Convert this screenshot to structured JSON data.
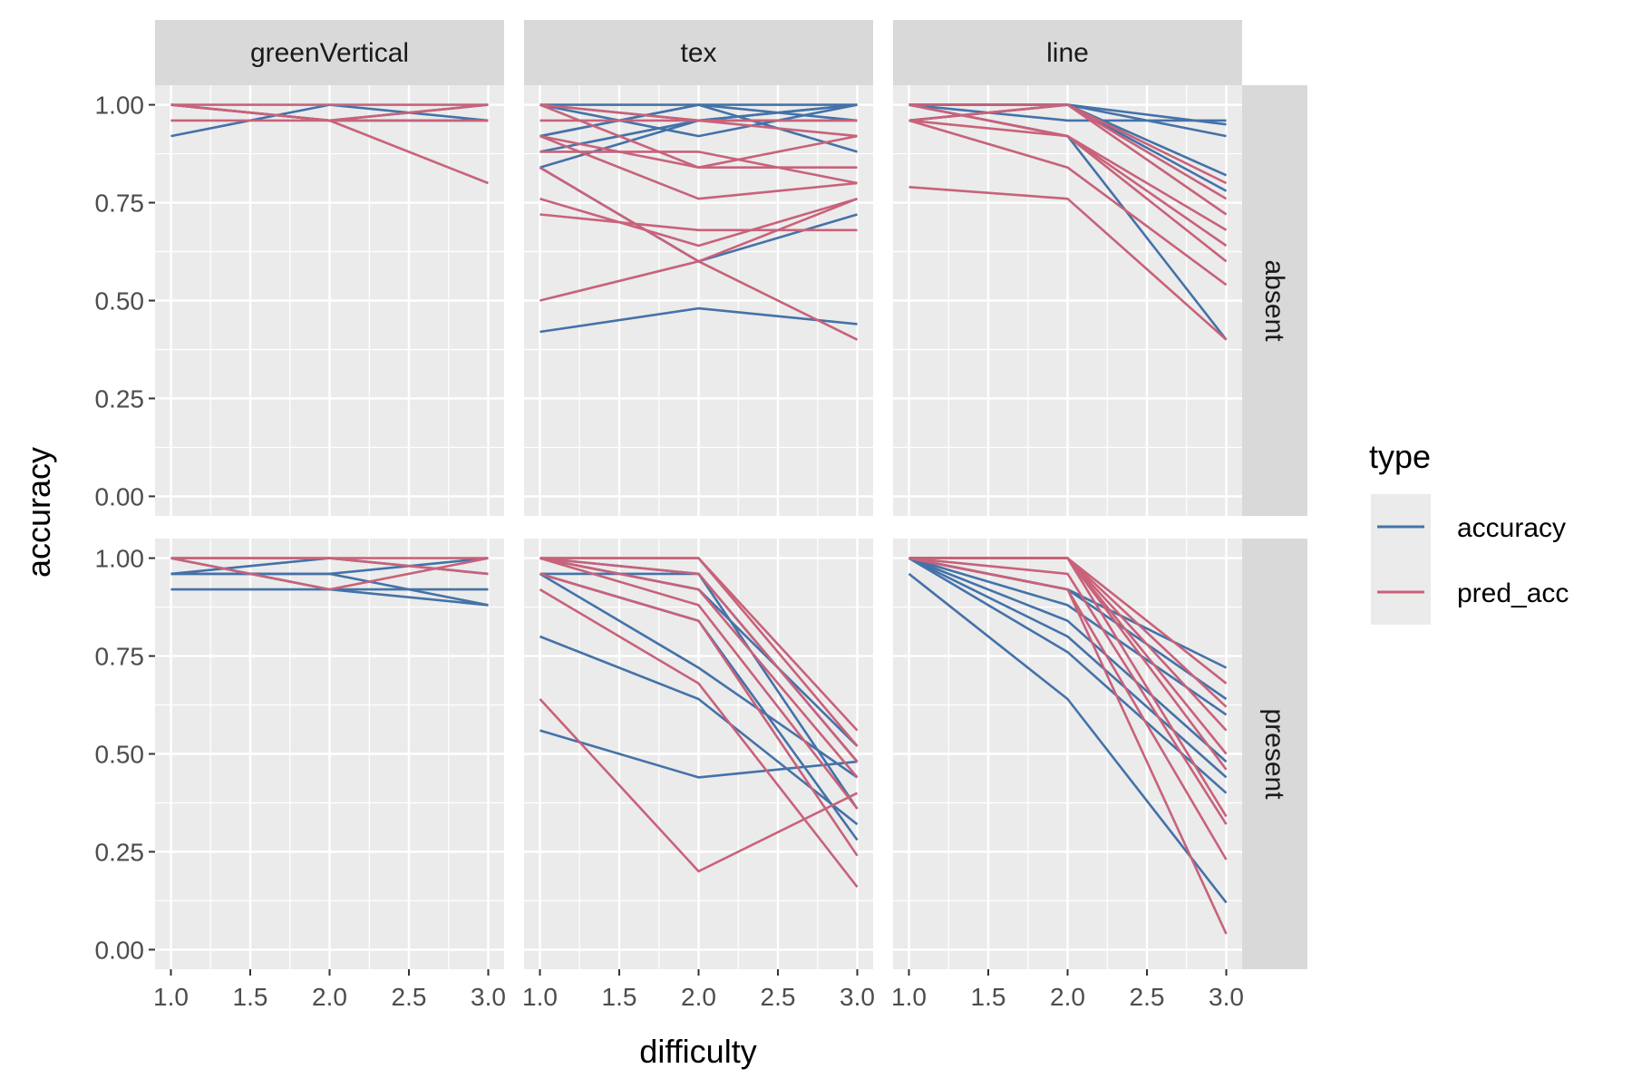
{
  "chart_data": {
    "type": "line",
    "xlabel": "difficulty",
    "ylabel": "accuracy",
    "xlim": [
      0.9,
      3.1
    ],
    "ylim": [
      -0.05,
      1.05
    ],
    "x_ticks": [
      "1.0",
      "1.5",
      "2.0",
      "2.5",
      "3.0"
    ],
    "y_ticks": [
      "0.00",
      "0.25",
      "0.50",
      "0.75",
      "1.00"
    ],
    "grid": true,
    "column_facets": [
      "greenVertical",
      "tex",
      "line"
    ],
    "row_facets": [
      "absent",
      "present"
    ],
    "legend": {
      "title": "type",
      "placement": "right",
      "entries": [
        {
          "name": "accuracy",
          "color": "#4472A8"
        },
        {
          "name": "pred_acc",
          "color": "#C8627A"
        }
      ]
    },
    "x": [
      1,
      2,
      3
    ],
    "panels": [
      {
        "column": "greenVertical",
        "row": "absent",
        "series": [
          {
            "type": "accuracy",
            "y": [
              0.92,
              1.0,
              0.96
            ]
          },
          {
            "type": "accuracy",
            "y": [
              1.0,
              0.96,
              1.0
            ]
          },
          {
            "type": "accuracy",
            "y": [
              1.0,
              0.96,
              0.96
            ]
          },
          {
            "type": "pred_acc",
            "y": [
              1.0,
              0.96,
              0.8
            ]
          },
          {
            "type": "pred_acc",
            "y": [
              0.96,
              0.96,
              0.96
            ]
          },
          {
            "type": "pred_acc",
            "y": [
              1.0,
              1.0,
              1.0
            ]
          },
          {
            "type": "pred_acc",
            "y": [
              1.0,
              0.96,
              1.0
            ]
          }
        ]
      },
      {
        "column": "greenVertical",
        "row": "present",
        "series": [
          {
            "type": "accuracy",
            "y": [
              0.96,
              0.96,
              0.88
            ]
          },
          {
            "type": "accuracy",
            "y": [
              0.92,
              0.92,
              0.92
            ]
          },
          {
            "type": "accuracy",
            "y": [
              0.96,
              1.0,
              0.96
            ]
          },
          {
            "type": "accuracy",
            "y": [
              1.0,
              0.92,
              0.88
            ]
          },
          {
            "type": "accuracy",
            "y": [
              0.96,
              0.96,
              1.0
            ]
          },
          {
            "type": "pred_acc",
            "y": [
              1.0,
              1.0,
              1.0
            ]
          },
          {
            "type": "pred_acc",
            "y": [
              1.0,
              0.92,
              1.0
            ]
          },
          {
            "type": "pred_acc",
            "y": [
              1.0,
              1.0,
              0.96
            ]
          }
        ]
      },
      {
        "column": "tex",
        "row": "absent",
        "series": [
          {
            "type": "accuracy",
            "y": [
              0.42,
              0.48,
              0.44
            ]
          },
          {
            "type": "accuracy",
            "y": [
              0.84,
              0.6,
              0.72
            ]
          },
          {
            "type": "accuracy",
            "y": [
              1.0,
              0.92,
              1.0
            ]
          },
          {
            "type": "accuracy",
            "y": [
              0.92,
              1.0,
              0.88
            ]
          },
          {
            "type": "accuracy",
            "y": [
              0.84,
              0.96,
              1.0
            ]
          },
          {
            "type": "accuracy",
            "y": [
              1.0,
              0.96,
              0.96
            ]
          },
          {
            "type": "accuracy",
            "y": [
              0.88,
              0.96,
              1.0
            ]
          },
          {
            "type": "accuracy",
            "y": [
              0.92,
              1.0,
              1.0
            ]
          },
          {
            "type": "accuracy",
            "y": [
              1.0,
              1.0,
              0.96
            ]
          },
          {
            "type": "pred_acc",
            "y": [
              0.5,
              0.6,
              0.76
            ]
          },
          {
            "type": "pred_acc",
            "y": [
              0.72,
              0.68,
              0.68
            ]
          },
          {
            "type": "pred_acc",
            "y": [
              0.76,
              0.64,
              0.76
            ]
          },
          {
            "type": "pred_acc",
            "y": [
              0.84,
              0.6,
              0.4
            ]
          },
          {
            "type": "pred_acc",
            "y": [
              0.92,
              0.76,
              0.8
            ]
          },
          {
            "type": "pred_acc",
            "y": [
              0.88,
              0.88,
              0.8
            ]
          },
          {
            "type": "pred_acc",
            "y": [
              0.92,
              0.84,
              0.84
            ]
          },
          {
            "type": "pred_acc",
            "y": [
              1.0,
              0.84,
              0.92
            ]
          },
          {
            "type": "pred_acc",
            "y": [
              0.96,
              0.96,
              0.92
            ]
          },
          {
            "type": "pred_acc",
            "y": [
              1.0,
              0.96,
              0.96
            ]
          }
        ]
      },
      {
        "column": "tex",
        "row": "present",
        "series": [
          {
            "type": "accuracy",
            "y": [
              0.56,
              0.44,
              0.48
            ]
          },
          {
            "type": "accuracy",
            "y": [
              0.8,
              0.64,
              0.32
            ]
          },
          {
            "type": "accuracy",
            "y": [
              0.96,
              0.72,
              0.44
            ]
          },
          {
            "type": "accuracy",
            "y": [
              0.96,
              0.84,
              0.28
            ]
          },
          {
            "type": "accuracy",
            "y": [
              1.0,
              0.92,
              0.52
            ]
          },
          {
            "type": "accuracy",
            "y": [
              0.96,
              0.96,
              0.48
            ]
          },
          {
            "type": "accuracy",
            "y": [
              1.0,
              0.96,
              0.36
            ]
          },
          {
            "type": "pred_acc",
            "y": [
              0.64,
              0.2,
              0.4
            ]
          },
          {
            "type": "pred_acc",
            "y": [
              0.92,
              0.68,
              0.16
            ]
          },
          {
            "type": "pred_acc",
            "y": [
              0.96,
              0.84,
              0.24
            ]
          },
          {
            "type": "pred_acc",
            "y": [
              1.0,
              0.88,
              0.36
            ]
          },
          {
            "type": "pred_acc",
            "y": [
              1.0,
              0.92,
              0.44
            ]
          },
          {
            "type": "pred_acc",
            "y": [
              1.0,
              0.96,
              0.48
            ]
          },
          {
            "type": "pred_acc",
            "y": [
              1.0,
              1.0,
              0.52
            ]
          },
          {
            "type": "pred_acc",
            "y": [
              1.0,
              1.0,
              0.56
            ]
          }
        ]
      },
      {
        "column": "line",
        "row": "absent",
        "series": [
          {
            "type": "accuracy",
            "y": [
              1.0,
              0.96,
              0.96
            ]
          },
          {
            "type": "accuracy",
            "y": [
              1.0,
              1.0,
              0.92
            ]
          },
          {
            "type": "accuracy",
            "y": [
              1.0,
              1.0,
              0.95
            ]
          },
          {
            "type": "accuracy",
            "y": [
              0.96,
              1.0,
              0.82
            ]
          },
          {
            "type": "accuracy",
            "y": [
              1.0,
              1.0,
              0.78
            ]
          },
          {
            "type": "accuracy",
            "y": [
              1.0,
              0.92,
              0.4
            ]
          },
          {
            "type": "pred_acc",
            "y": [
              0.79,
              0.76,
              0.4
            ]
          },
          {
            "type": "pred_acc",
            "y": [
              0.96,
              0.84,
              0.54
            ]
          },
          {
            "type": "pred_acc",
            "y": [
              1.0,
              0.92,
              0.6
            ]
          },
          {
            "type": "pred_acc",
            "y": [
              0.96,
              0.92,
              0.64
            ]
          },
          {
            "type": "pred_acc",
            "y": [
              1.0,
              0.92,
              0.68
            ]
          },
          {
            "type": "pred_acc",
            "y": [
              0.96,
              1.0,
              0.72
            ]
          },
          {
            "type": "pred_acc",
            "y": [
              1.0,
              1.0,
              0.76
            ]
          },
          {
            "type": "pred_acc",
            "y": [
              0.96,
              1.0,
              0.8
            ]
          }
        ]
      },
      {
        "column": "line",
        "row": "present",
        "series": [
          {
            "type": "accuracy",
            "y": [
              0.96,
              0.64,
              0.12
            ]
          },
          {
            "type": "accuracy",
            "y": [
              1.0,
              0.76,
              0.4
            ]
          },
          {
            "type": "accuracy",
            "y": [
              1.0,
              0.8,
              0.44
            ]
          },
          {
            "type": "accuracy",
            "y": [
              1.0,
              0.84,
              0.48
            ]
          },
          {
            "type": "accuracy",
            "y": [
              1.0,
              0.88,
              0.6
            ]
          },
          {
            "type": "accuracy",
            "y": [
              1.0,
              0.92,
              0.64
            ]
          },
          {
            "type": "accuracy",
            "y": [
              1.0,
              0.92,
              0.72
            ]
          },
          {
            "type": "pred_acc",
            "y": [
              1.0,
              0.92,
              0.04
            ]
          },
          {
            "type": "pred_acc",
            "y": [
              1.0,
              0.92,
              0.23
            ]
          },
          {
            "type": "pred_acc",
            "y": [
              1.0,
              0.96,
              0.32
            ]
          },
          {
            "type": "pred_acc",
            "y": [
              1.0,
              1.0,
              0.34
            ]
          },
          {
            "type": "pred_acc",
            "y": [
              1.0,
              1.0,
              0.46
            ]
          },
          {
            "type": "pred_acc",
            "y": [
              1.0,
              1.0,
              0.5
            ]
          },
          {
            "type": "pred_acc",
            "y": [
              1.0,
              1.0,
              0.56
            ]
          },
          {
            "type": "pred_acc",
            "y": [
              1.0,
              1.0,
              0.62
            ]
          },
          {
            "type": "pred_acc",
            "y": [
              1.0,
              1.0,
              0.68
            ]
          }
        ]
      }
    ]
  }
}
